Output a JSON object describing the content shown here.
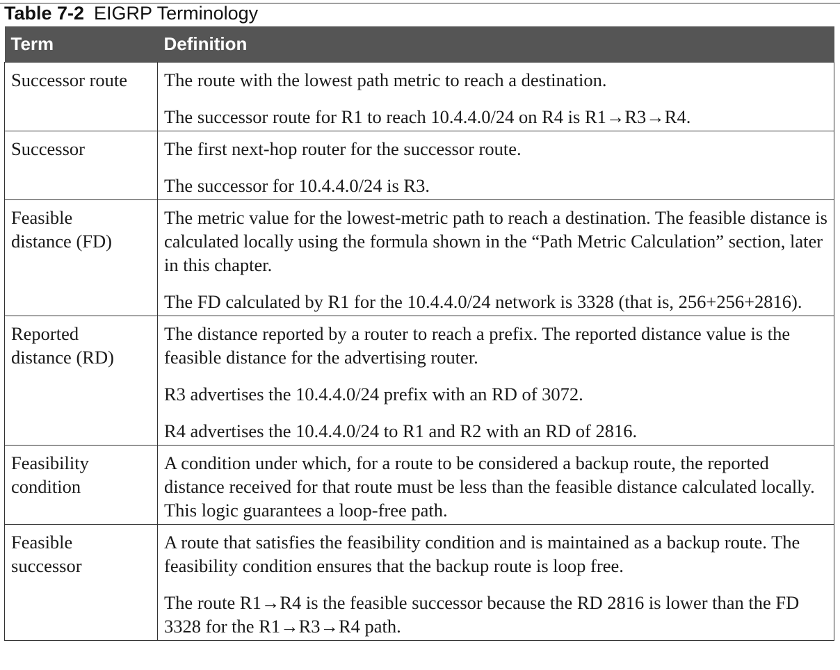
{
  "caption": {
    "number": "Table 7-2",
    "title": "EIGRP Terminology"
  },
  "columns": {
    "term": "Term",
    "definition": "Definition"
  },
  "rows": [
    {
      "term": [
        "Successor route"
      ],
      "definition": [
        "The route with the lowest path metric to reach a destination.",
        "The successor route for R1 to reach 10.4.4.0/24 on R4 is R1→R3→R4."
      ]
    },
    {
      "term": [
        "Successor"
      ],
      "definition": [
        "The first next-hop router for the successor route.",
        "The successor for 10.4.4.0/24 is R3."
      ]
    },
    {
      "term": [
        "Feasible",
        "distance (FD)"
      ],
      "definition": [
        "The metric value for the lowest-metric path to reach a destination. The feasible distance is calculated locally using the formula shown in the “Path Metric Calculation” section, later in this chapter.",
        "The FD calculated by R1 for the 10.4.4.0/24 network is 3328 (that is, 256+256+2816)."
      ]
    },
    {
      "term": [
        "Reported",
        "distance (RD)"
      ],
      "definition": [
        "The distance reported by a router to reach a prefix. The reported distance value is the feasible distance for the advertising router.",
        "R3 advertises the 10.4.4.0/24 prefix with an RD of 3072.",
        "R4 advertises the 10.4.4.0/24 to R1 and R2 with an RD of 2816."
      ]
    },
    {
      "term": [
        "Feasibility",
        "condition"
      ],
      "definition": [
        "A condition under which, for a route to be considered a backup route, the reported distance received for that route must be less than the feasible distance calculated locally. This logic guarantees a loop-free path."
      ]
    },
    {
      "term": [
        "Feasible",
        "successor"
      ],
      "definition": [
        "A route that satisfies the feasibility condition and is maintained as a backup route. The feasibility condition ensures that the backup route is loop free.",
        "The route R1→R4 is the feasible successor because the RD 2816 is lower than the FD 3328 for the R1→R3→R4 path."
      ]
    }
  ]
}
